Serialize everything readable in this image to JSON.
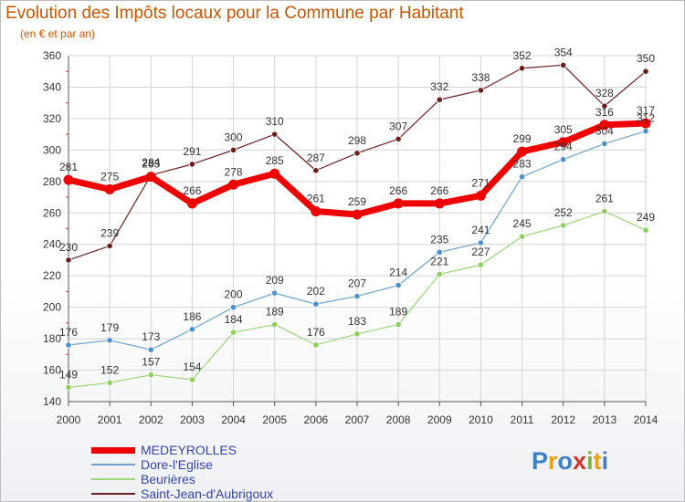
{
  "title": "Evolution des Impôts locaux pour la Commune par Habitant",
  "subtitle": "(en € et par an)",
  "logo": {
    "text": "Proxiti",
    "colors": [
      "#3b82c4",
      "#e8a21a",
      "#3b82c4",
      "#d6332c",
      "#7cb342",
      "#e8a21a",
      "#3b82c4"
    ]
  },
  "chart_data": {
    "type": "line",
    "title": "Evolution des Impôts locaux pour la Commune par Habitant",
    "subtitle": "(en € et par an)",
    "xlabel": "",
    "ylabel": "",
    "x": [
      "2000",
      "2001",
      "2002",
      "2003",
      "2004",
      "2005",
      "2006",
      "2007",
      "2008",
      "2009",
      "2010",
      "2011",
      "2012",
      "2013",
      "2014"
    ],
    "ylim": [
      140,
      360
    ],
    "yticks": [
      140,
      160,
      180,
      200,
      220,
      240,
      260,
      280,
      300,
      320,
      340,
      360
    ],
    "grid": true,
    "legend_position": "bottom-left",
    "series": [
      {
        "name": "Saint-Jean-d'Aubrigoux",
        "color": "#6b2020",
        "width": 1.2,
        "marker": "#6b2020",
        "values": [
          230,
          239,
          284,
          291,
          300,
          310,
          287,
          298,
          307,
          332,
          338,
          352,
          354,
          328,
          350
        ]
      },
      {
        "name": "Beurières",
        "color": "#9ad67a",
        "width": 1.2,
        "marker": "#8ccf5c",
        "values": [
          149,
          152,
          157,
          154,
          184,
          189,
          176,
          183,
          189,
          221,
          227,
          245,
          252,
          261,
          249
        ]
      },
      {
        "name": "Dore-l'Eglise",
        "color": "#6ea1cc",
        "width": 1.2,
        "marker": "#4a90d0",
        "values": [
          176,
          179,
          173,
          186,
          200,
          209,
          202,
          207,
          214,
          235,
          241,
          283,
          294,
          304,
          312
        ]
      },
      {
        "name": "MEDEYROLLES",
        "color": "#ee0000",
        "width": 7,
        "marker": "#ee0000",
        "values": [
          281,
          275,
          283,
          266,
          278,
          285,
          261,
          259,
          266,
          266,
          271,
          299,
          305,
          316,
          317
        ]
      }
    ]
  }
}
